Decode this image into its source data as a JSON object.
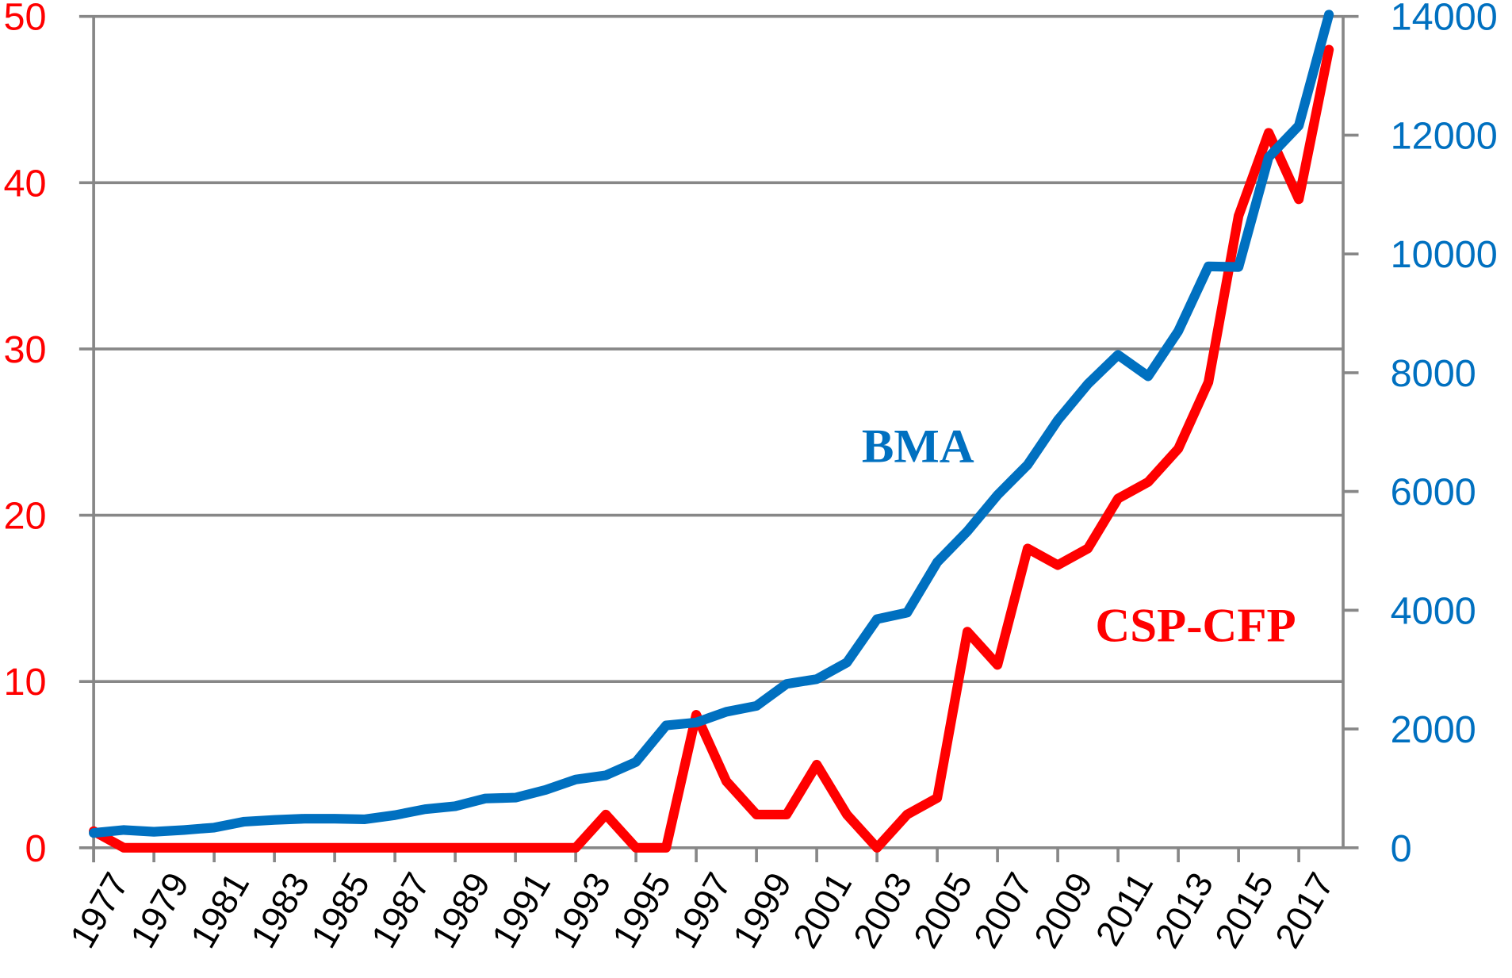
{
  "chart_data": {
    "type": "line",
    "title": "",
    "xlabel": "",
    "ylabel_left": "",
    "ylabel_right": "",
    "x": [
      1977,
      1978,
      1979,
      1980,
      1981,
      1982,
      1983,
      1984,
      1985,
      1986,
      1987,
      1988,
      1989,
      1990,
      1991,
      1992,
      1993,
      1994,
      1995,
      1996,
      1997,
      1998,
      1999,
      2000,
      2001,
      2002,
      2003,
      2004,
      2005,
      2006,
      2007,
      2008,
      2009,
      2010,
      2011,
      2012,
      2013,
      2014,
      2015,
      2016,
      2017,
      2018
    ],
    "x_tick_labels": [
      "1977",
      "1979",
      "1981",
      "1983",
      "1985",
      "1987",
      "1989",
      "1991",
      "1993",
      "1995",
      "1997",
      "1999",
      "2001",
      "2003",
      "2005",
      "2007",
      "2009",
      "2011",
      "2013",
      "2015",
      "2017"
    ],
    "ylim_left": [
      0,
      50
    ],
    "ylim_right": [
      0,
      14000
    ],
    "y_left_ticks": [
      "0",
      "10",
      "20",
      "30",
      "40",
      "50"
    ],
    "y_right_ticks": [
      "0",
      "2000",
      "4000",
      "6000",
      "8000",
      "10000",
      "12000",
      "14000"
    ],
    "grid": true,
    "series": [
      {
        "name": "CSP-CFP",
        "axis": "left",
        "color": "#FF0000",
        "values": [
          1,
          0,
          0,
          0,
          0,
          0,
          0,
          0,
          0,
          0,
          0,
          0,
          0,
          0,
          0,
          0,
          0,
          2,
          0,
          0,
          8,
          4,
          2,
          2,
          5,
          2,
          0,
          2,
          3,
          13,
          11,
          18,
          17,
          18,
          21,
          22,
          24,
          28,
          38,
          43,
          39,
          48
        ]
      },
      {
        "name": "BMA",
        "axis": "right",
        "color": "#0070C0",
        "values": [
          250,
          300,
          270,
          300,
          340,
          440,
          470,
          490,
          490,
          480,
          550,
          650,
          700,
          830,
          845,
          975,
          1150,
          1220,
          1445,
          2060,
          2110,
          2290,
          2390,
          2760,
          2840,
          3120,
          3850,
          3960,
          4810,
          5330,
          5940,
          6450,
          7200,
          7810,
          8300,
          7940,
          8700,
          9790,
          9780,
          11630,
          12160,
          14030
        ]
      }
    ],
    "annotations": [
      "BMA",
      "CSP-CFP"
    ],
    "colors": {
      "left_axis": "#FF0000",
      "right_axis": "#0070C0",
      "grid": "#878787"
    }
  }
}
